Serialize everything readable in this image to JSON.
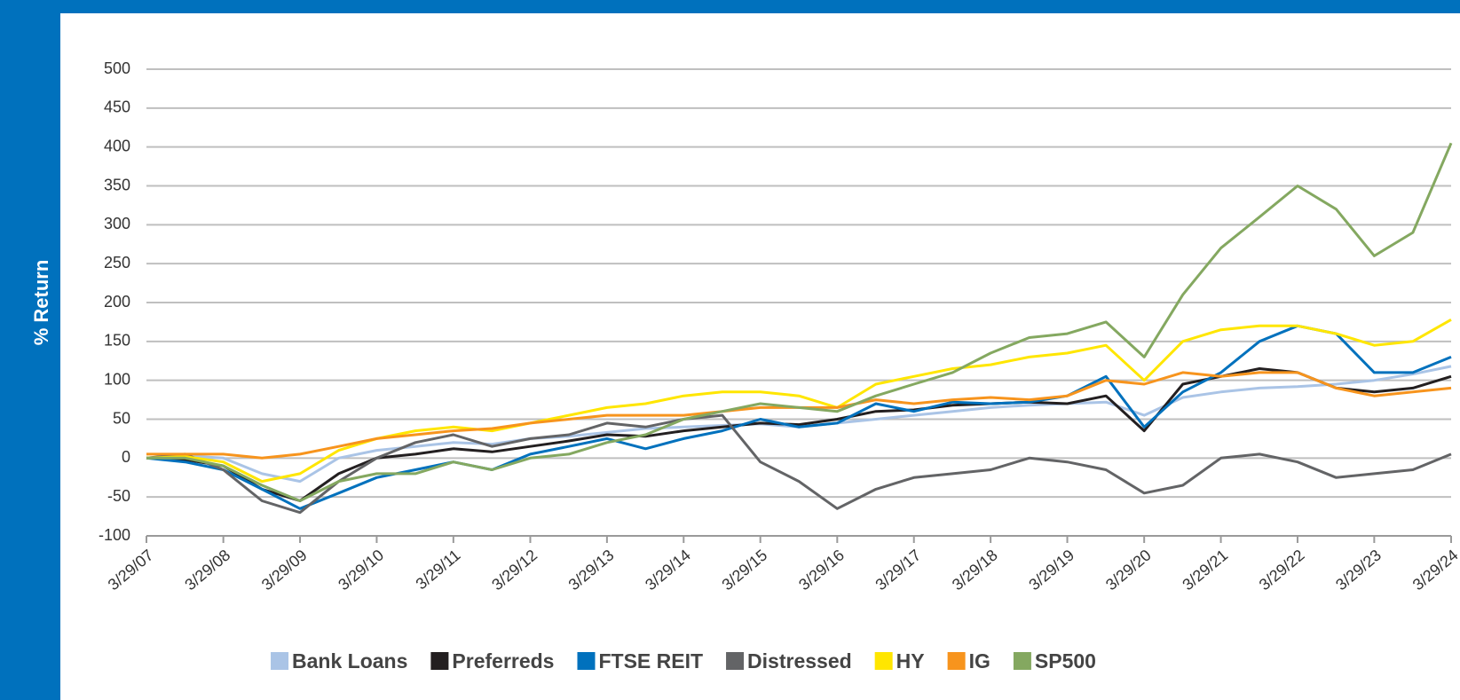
{
  "chart_data": {
    "type": "line",
    "y_axis_label": "% Return",
    "x": [
      "3/29/07",
      "9/29/07",
      "3/29/08",
      "9/29/08",
      "3/29/09",
      "9/29/09",
      "3/29/10",
      "9/29/10",
      "3/29/11",
      "9/29/11",
      "3/29/12",
      "9/29/12",
      "3/29/13",
      "9/29/13",
      "3/29/14",
      "9/29/14",
      "3/29/15",
      "9/29/15",
      "3/29/16",
      "9/29/16",
      "3/29/17",
      "9/29/17",
      "3/29/18",
      "9/29/18",
      "3/29/19",
      "9/29/19",
      "3/29/20",
      "9/29/20",
      "3/29/21",
      "9/29/21",
      "3/29/22",
      "9/29/22",
      "3/29/23",
      "9/29/23",
      "3/29/24"
    ],
    "xlim": [
      "3/29/07",
      "3/29/24"
    ],
    "xticks": [
      "3/29/07",
      "3/29/08",
      "3/29/09",
      "3/29/10",
      "3/29/11",
      "3/29/12",
      "3/29/13",
      "3/29/14",
      "3/29/15",
      "3/29/16",
      "3/29/17",
      "3/29/18",
      "3/29/19",
      "3/29/20",
      "3/29/21",
      "3/29/22",
      "3/29/23",
      "3/29/24"
    ],
    "ylim": [
      -100,
      500
    ],
    "yticks": [
      -100,
      -50,
      0,
      50,
      100,
      150,
      200,
      250,
      300,
      350,
      400,
      450,
      500
    ],
    "grid": true,
    "legend": "bottom",
    "series": [
      {
        "name": "Bank Loans",
        "color": "#aac4e6",
        "values": [
          0,
          3,
          0,
          -20,
          -30,
          0,
          10,
          15,
          20,
          18,
          25,
          28,
          33,
          38,
          40,
          42,
          44,
          40,
          45,
          50,
          55,
          60,
          65,
          68,
          70,
          72,
          55,
          78,
          85,
          90,
          92,
          95,
          100,
          108,
          118
        ]
      },
      {
        "name": "Preferreds",
        "color": "#231f20",
        "values": [
          0,
          -2,
          -10,
          -40,
          -55,
          -20,
          0,
          5,
          12,
          8,
          15,
          22,
          30,
          28,
          35,
          40,
          45,
          43,
          50,
          60,
          62,
          68,
          70,
          72,
          70,
          80,
          35,
          95,
          105,
          115,
          110,
          90,
          85,
          90,
          105
        ]
      },
      {
        "name": "FTSE REIT",
        "color": "#0071bd",
        "values": [
          0,
          -5,
          -15,
          -40,
          -65,
          -45,
          -25,
          -15,
          -5,
          -15,
          5,
          15,
          25,
          12,
          25,
          35,
          50,
          40,
          45,
          70,
          60,
          72,
          70,
          72,
          80,
          105,
          40,
          85,
          110,
          150,
          170,
          160,
          110,
          110,
          130
        ]
      },
      {
        "name": "Distressed",
        "color": "#636466",
        "values": [
          0,
          5,
          -15,
          -55,
          -70,
          -30,
          0,
          20,
          30,
          15,
          25,
          30,
          45,
          40,
          50,
          55,
          -5,
          -30,
          -65,
          -40,
          -25,
          -20,
          -15,
          0,
          -5,
          -15,
          -45,
          -35,
          0,
          5,
          -5,
          -25,
          -20,
          -15,
          5
        ]
      },
      {
        "name": "HY",
        "color": "#ffe600",
        "values": [
          0,
          2,
          -5,
          -30,
          -20,
          10,
          25,
          35,
          40,
          35,
          45,
          55,
          65,
          70,
          80,
          85,
          85,
          80,
          65,
          95,
          105,
          115,
          120,
          130,
          135,
          145,
          100,
          150,
          165,
          170,
          170,
          160,
          145,
          150,
          178
        ]
      },
      {
        "name": "IG",
        "color": "#f7941d",
        "values": [
          5,
          5,
          5,
          0,
          5,
          15,
          25,
          30,
          35,
          38,
          45,
          50,
          55,
          55,
          55,
          60,
          65,
          65,
          65,
          75,
          70,
          75,
          78,
          75,
          80,
          100,
          95,
          110,
          105,
          110,
          110,
          90,
          80,
          85,
          90
        ]
      },
      {
        "name": "SP500",
        "color": "#84a860",
        "values": [
          0,
          0,
          -10,
          -35,
          -55,
          -30,
          -20,
          -20,
          -5,
          -15,
          0,
          5,
          20,
          30,
          50,
          60,
          70,
          65,
          60,
          80,
          95,
          110,
          135,
          155,
          160,
          175,
          130,
          210,
          270,
          310,
          350,
          320,
          260,
          290,
          405
        ]
      }
    ]
  }
}
